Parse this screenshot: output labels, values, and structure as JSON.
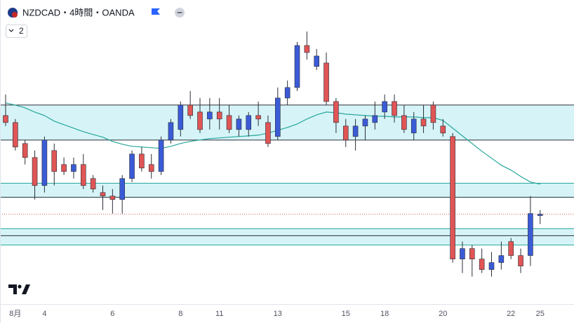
{
  "header": {
    "symbol": "NZDCAD・4時間・OANDA",
    "indicator_count": "2"
  },
  "chart_data": {
    "type": "candlestick",
    "categories": [
      null,
      "8月",
      null,
      null,
      "4",
      null,
      null,
      null,
      null,
      null,
      null,
      "6",
      null,
      null,
      null,
      null,
      null,
      null,
      "8",
      null,
      null,
      null,
      "11",
      null,
      null,
      null,
      null,
      null,
      "13",
      null,
      null,
      null,
      null,
      null,
      null,
      "15",
      null,
      null,
      null,
      "18",
      null,
      null,
      null,
      null,
      null,
      "20",
      null,
      null,
      null,
      null,
      null,
      null,
      "22",
      null,
      null,
      "25"
    ],
    "open": [
      0.8351,
      0.8345,
      0.8327,
      0.8315,
      0.8291,
      0.8321,
      0.8309,
      0.8303,
      0.8309,
      0.8297,
      0.8285,
      0.8282,
      0.8279,
      0.8297,
      0.8318,
      0.8309,
      0.8303,
      0.833,
      0.8339,
      0.836,
      0.8354,
      0.8348,
      0.8354,
      0.8351,
      0.8339,
      0.8339,
      0.8351,
      0.8345,
      0.8333,
      0.8366,
      0.8375,
      0.8411,
      0.8393,
      0.8396,
      0.8363,
      0.8342,
      0.8333,
      0.8342,
      0.8345,
      0.8354,
      0.8363,
      0.8351,
      0.8336,
      0.8348,
      0.836,
      0.8342,
      0.8333,
      0.8228,
      0.8237,
      0.8228,
      0.8219,
      0.8225,
      0.8243,
      0.8231,
      0.8231,
      0.82652
    ],
    "high": [
      0.8369,
      0.8348,
      0.833,
      0.8321,
      0.8333,
      0.8327,
      0.8315,
      0.8315,
      0.8318,
      0.83,
      0.8291,
      0.8288,
      0.83,
      0.8321,
      0.8324,
      0.8318,
      0.8333,
      0.8348,
      0.8363,
      0.8372,
      0.8366,
      0.8366,
      0.8366,
      0.836,
      0.8351,
      0.8354,
      0.8363,
      0.8351,
      0.8375,
      0.8381,
      0.8414,
      0.8423,
      0.8408,
      0.8405,
      0.8366,
      0.8348,
      0.8348,
      0.8351,
      0.8363,
      0.8369,
      0.8369,
      0.836,
      0.8354,
      0.836,
      0.8363,
      0.8348,
      0.8336,
      0.8243,
      0.824,
      0.8237,
      0.8234,
      0.8243,
      0.8246,
      0.8237,
      0.8282,
      0.827
    ],
    "low": [
      0.8342,
      0.8321,
      0.8309,
      0.8279,
      0.8285,
      0.8291,
      0.83,
      0.8297,
      0.8288,
      0.8285,
      0.827,
      0.8267,
      0.8267,
      0.8294,
      0.8303,
      0.8297,
      0.83,
      0.8327,
      0.8333,
      0.8348,
      0.8336,
      0.8339,
      0.8339,
      0.8336,
      0.8333,
      0.8333,
      0.8342,
      0.8324,
      0.833,
      0.836,
      0.8372,
      0.8399,
      0.839,
      0.836,
      0.8336,
      0.8324,
      0.8321,
      0.833,
      0.8339,
      0.8348,
      0.8345,
      0.8336,
      0.833,
      0.8336,
      0.8339,
      0.8333,
      0.8225,
      0.8216,
      0.8213,
      0.8216,
      0.8213,
      0.8219,
      0.8228,
      0.8216,
      0.8222,
      0.8258
    ],
    "close": [
      0.8345,
      0.8324,
      0.8315,
      0.8291,
      0.833,
      0.8303,
      0.8303,
      0.8309,
      0.8291,
      0.8288,
      0.8282,
      0.8279,
      0.8297,
      0.8318,
      0.8306,
      0.8303,
      0.833,
      0.8345,
      0.836,
      0.8351,
      0.8339,
      0.8354,
      0.8348,
      0.8339,
      0.8348,
      0.8351,
      0.8348,
      0.8327,
      0.8366,
      0.8375,
      0.8411,
      0.8405,
      0.8402,
      0.8363,
      0.8345,
      0.833,
      0.8342,
      0.8348,
      0.8351,
      0.8363,
      0.8351,
      0.8339,
      0.8348,
      0.8342,
      0.8345,
      0.8336,
      0.8228,
      0.8237,
      0.8228,
      0.8219,
      0.8225,
      0.8231,
      0.8231,
      0.8222,
      0.8267,
      0.82664
    ],
    "ma": [
      0.83618,
      0.836,
      0.83576,
      0.8354,
      0.8351,
      0.83462,
      0.83432,
      0.83402,
      0.83372,
      0.83348,
      0.83324,
      0.83288,
      0.83264,
      0.83246,
      0.8324,
      0.83234,
      0.83228,
      0.83246,
      0.8327,
      0.83288,
      0.833,
      0.83312,
      0.83318,
      0.83324,
      0.8333,
      0.83336,
      0.83342,
      0.8336,
      0.83384,
      0.83408,
      0.83438,
      0.8348,
      0.83516,
      0.8354,
      0.83534,
      0.83522,
      0.83516,
      0.8351,
      0.83504,
      0.83504,
      0.83498,
      0.83498,
      0.83498,
      0.83492,
      0.83492,
      0.83468,
      0.83402,
      0.83336,
      0.8327,
      0.83204,
      0.83144,
      0.83084,
      0.83042,
      0.82988,
      0.8294,
      0.82922
    ],
    "ma_color": "#26a69a",
    "up_color": "#3b5bd6",
    "down_color": "#e05555",
    "wick_color": "#2a2e39",
    "zones": [
      {
        "from": 0.836,
        "to": 0.833,
        "edges": [
          "#2a2e39",
          "#2a2e39"
        ]
      },
      {
        "from": 0.8293,
        "to": 0.8281,
        "edges": [
          "#26a69a",
          "#1e3a40"
        ]
      },
      {
        "from": 0.8254,
        "to": 0.824,
        "edges": [
          "#26a69a",
          "#26a69a"
        ]
      }
    ],
    "zone_fill": "#d6f4f8",
    "lines": [
      {
        "value": 0.8248,
        "color": "#2a2e39"
      }
    ],
    "price_line_color": "#e05555",
    "ylim": [
      0.819,
      0.845
    ]
  }
}
